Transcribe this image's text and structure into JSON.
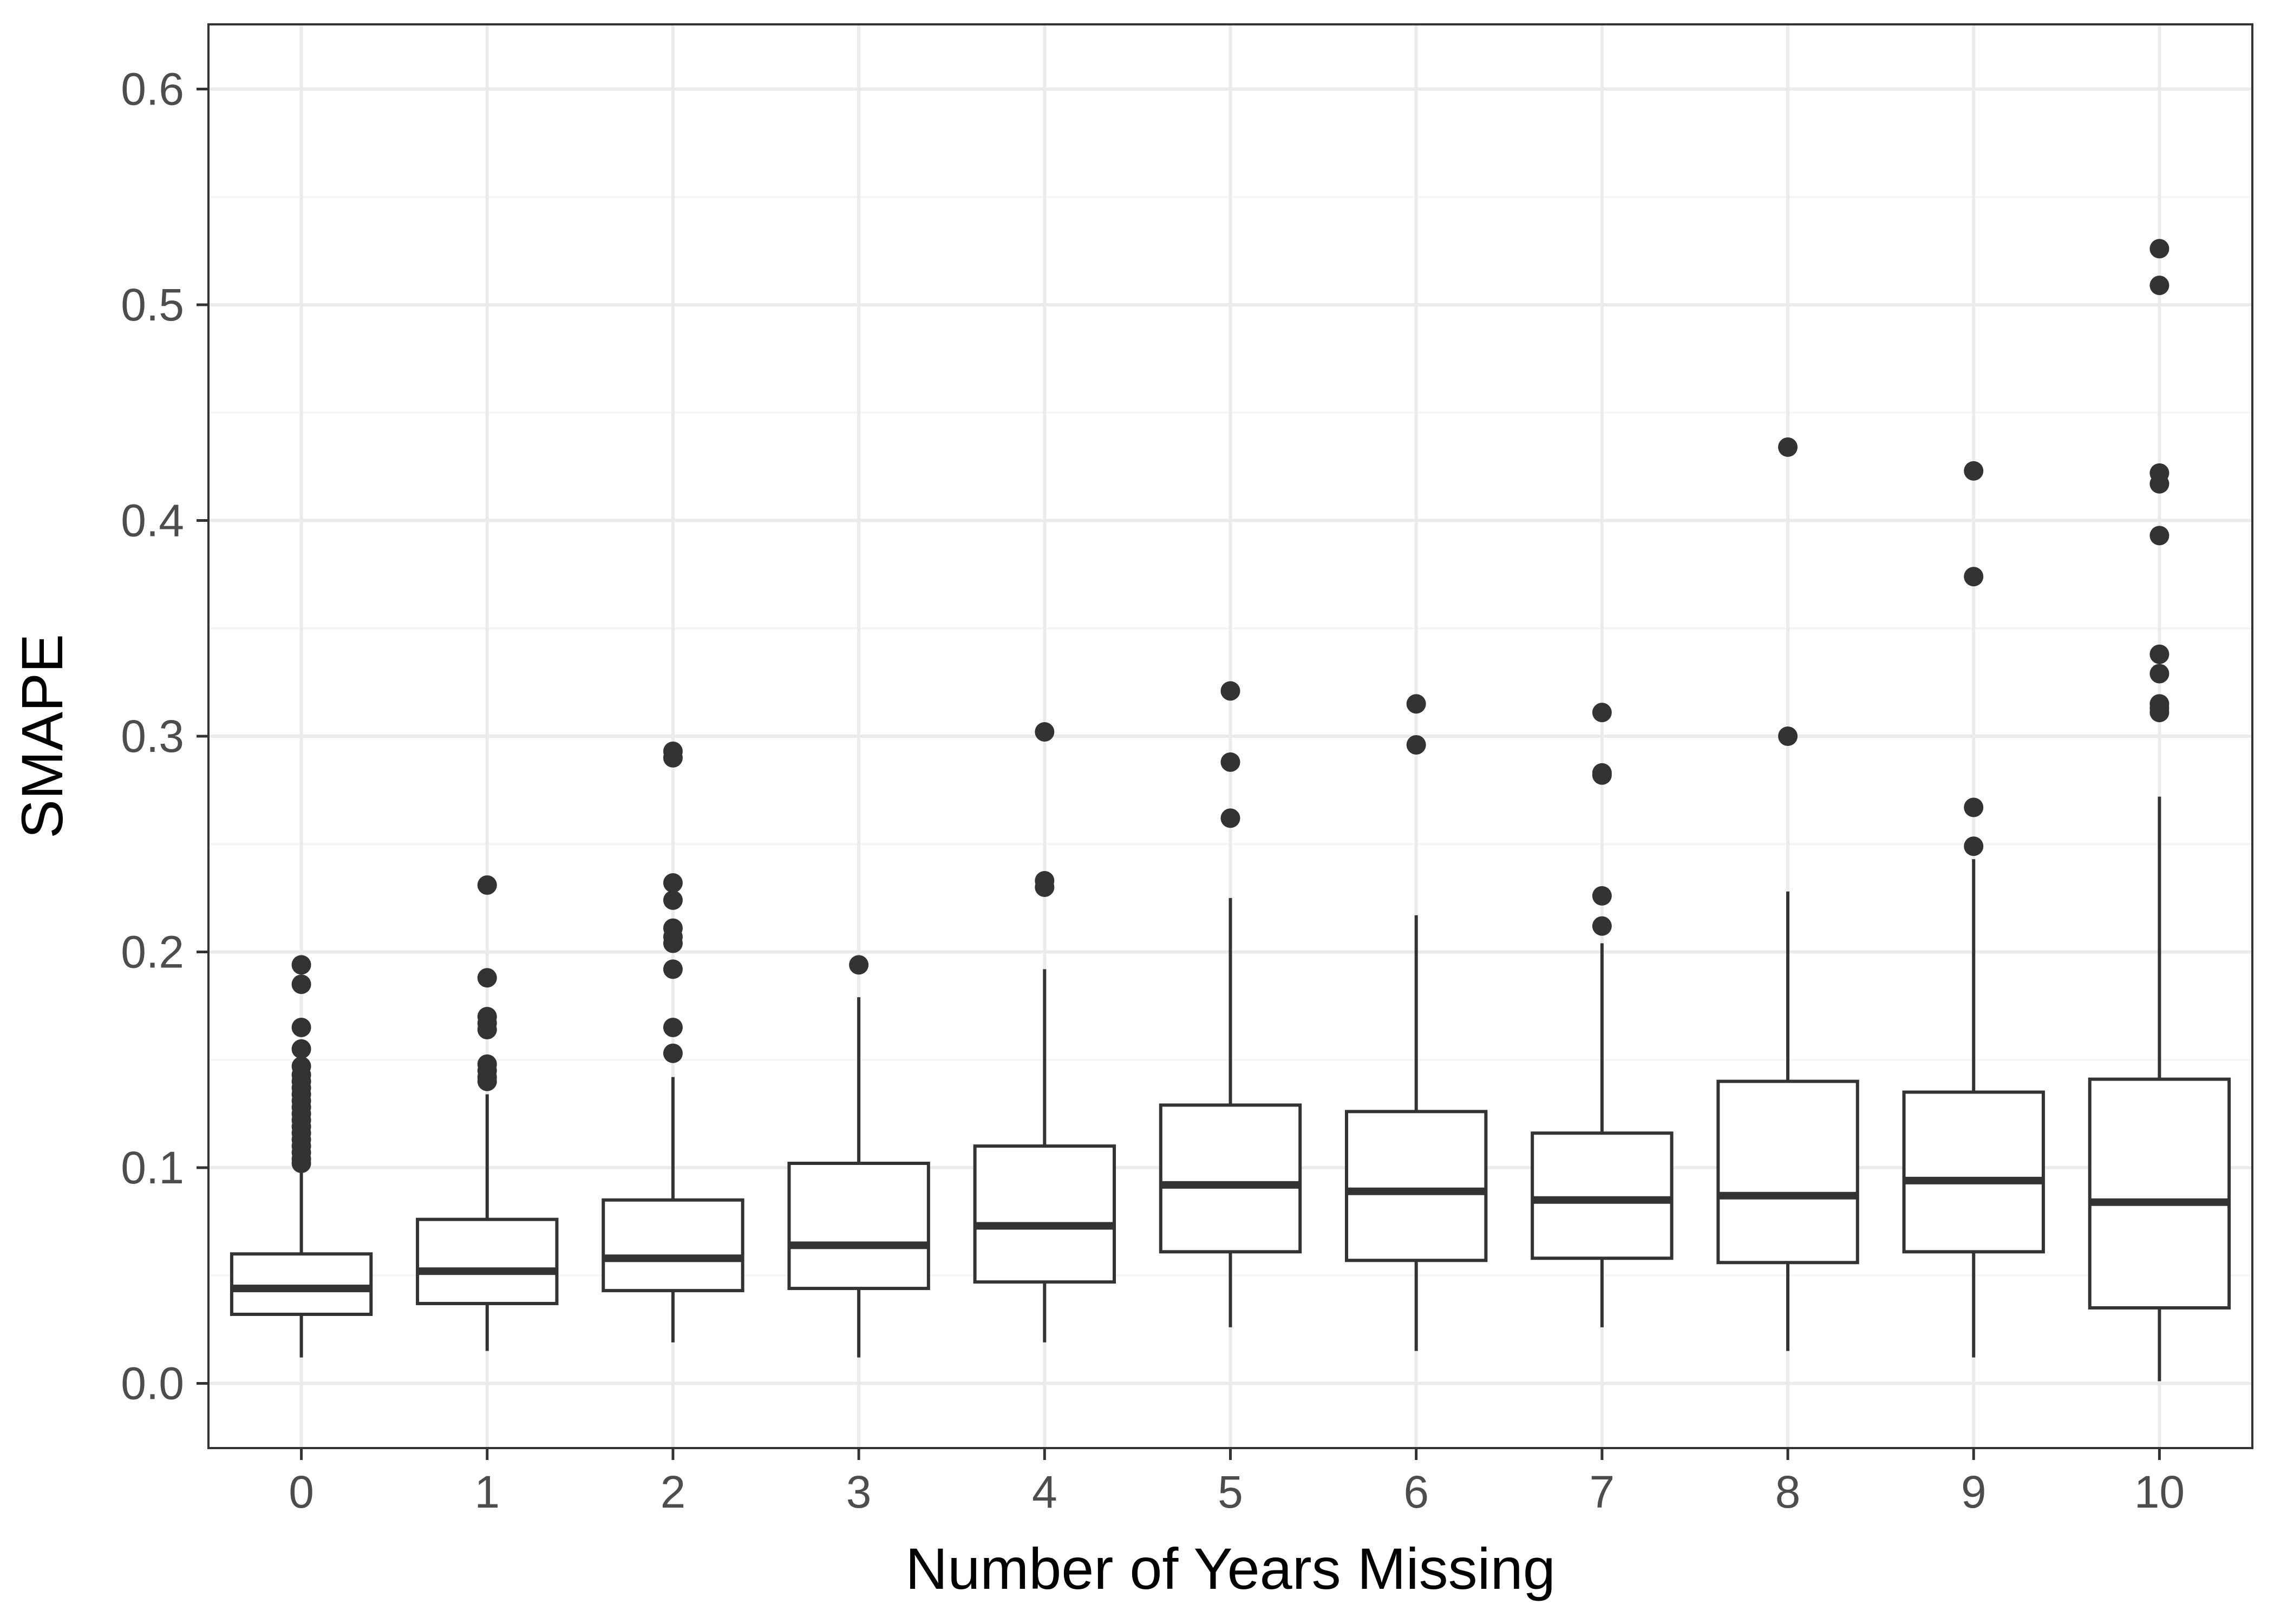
{
  "chart_data": {
    "type": "box",
    "title": "",
    "xlabel": "Number of Years Missing",
    "ylabel": "SMAPE",
    "ylim": [
      -0.03,
      0.63
    ],
    "y_ticks": [
      0.0,
      0.1,
      0.2,
      0.3,
      0.4,
      0.5,
      0.6
    ],
    "y_tick_labels": [
      "0.0",
      "0.1",
      "0.2",
      "0.3",
      "0.4",
      "0.5",
      "0.6"
    ],
    "grid": true,
    "categories": [
      "0",
      "1",
      "2",
      "3",
      "4",
      "5",
      "6",
      "7",
      "8",
      "9",
      "10"
    ],
    "boxes": [
      {
        "category": "0",
        "whisker_low": 0.012,
        "q1": 0.032,
        "median": 0.044,
        "q3": 0.06,
        "whisker_high": 0.101,
        "outliers": [
          0.194,
          0.185,
          0.165,
          0.155,
          0.147,
          0.143,
          0.14,
          0.137,
          0.134,
          0.131,
          0.128,
          0.125,
          0.122,
          0.119,
          0.116,
          0.113,
          0.11,
          0.107,
          0.104,
          0.102
        ]
      },
      {
        "category": "1",
        "whisker_low": 0.015,
        "q1": 0.037,
        "median": 0.052,
        "q3": 0.076,
        "whisker_high": 0.134,
        "outliers": [
          0.231,
          0.188,
          0.17,
          0.167,
          0.164,
          0.148,
          0.145,
          0.142,
          0.14
        ]
      },
      {
        "category": "2",
        "whisker_low": 0.019,
        "q1": 0.043,
        "median": 0.058,
        "q3": 0.085,
        "whisker_high": 0.142,
        "outliers": [
          0.293,
          0.29,
          0.232,
          0.224,
          0.211,
          0.207,
          0.204,
          0.192,
          0.165,
          0.153
        ]
      },
      {
        "category": "3",
        "whisker_low": 0.012,
        "q1": 0.044,
        "median": 0.064,
        "q3": 0.102,
        "whisker_high": 0.179,
        "outliers": [
          0.194
        ]
      },
      {
        "category": "4",
        "whisker_low": 0.019,
        "q1": 0.047,
        "median": 0.073,
        "q3": 0.11,
        "whisker_high": 0.192,
        "outliers": [
          0.302,
          0.233,
          0.23
        ]
      },
      {
        "category": "5",
        "whisker_low": 0.026,
        "q1": 0.061,
        "median": 0.092,
        "q3": 0.129,
        "whisker_high": 0.225,
        "outliers": [
          0.321,
          0.288,
          0.262
        ]
      },
      {
        "category": "6",
        "whisker_low": 0.015,
        "q1": 0.057,
        "median": 0.089,
        "q3": 0.126,
        "whisker_high": 0.217,
        "outliers": [
          0.315,
          0.296
        ]
      },
      {
        "category": "7",
        "whisker_low": 0.026,
        "q1": 0.058,
        "median": 0.085,
        "q3": 0.116,
        "whisker_high": 0.204,
        "outliers": [
          0.311,
          0.283,
          0.282,
          0.226,
          0.212
        ]
      },
      {
        "category": "8",
        "whisker_low": 0.015,
        "q1": 0.056,
        "median": 0.087,
        "q3": 0.14,
        "whisker_high": 0.228,
        "outliers": [
          0.434,
          0.3
        ]
      },
      {
        "category": "9",
        "whisker_low": 0.012,
        "q1": 0.061,
        "median": 0.094,
        "q3": 0.135,
        "whisker_high": 0.243,
        "outliers": [
          0.423,
          0.374,
          0.267,
          0.249
        ]
      },
      {
        "category": "10",
        "whisker_low": 0.001,
        "q1": 0.035,
        "median": 0.084,
        "q3": 0.141,
        "whisker_high": 0.272,
        "outliers": [
          0.526,
          0.509,
          0.422,
          0.417,
          0.393,
          0.338,
          0.329,
          0.315,
          0.313,
          0.311
        ]
      }
    ],
    "colors": {
      "box_fill": "#ffffff",
      "box_stroke": "#333333",
      "outlier": "#333333",
      "grid_major": "#ebebeb",
      "grid_minor": "#f4f4f4",
      "panel_border": "#333333",
      "tick_label": "#4d4d4d",
      "axis_title": "#000000"
    }
  }
}
